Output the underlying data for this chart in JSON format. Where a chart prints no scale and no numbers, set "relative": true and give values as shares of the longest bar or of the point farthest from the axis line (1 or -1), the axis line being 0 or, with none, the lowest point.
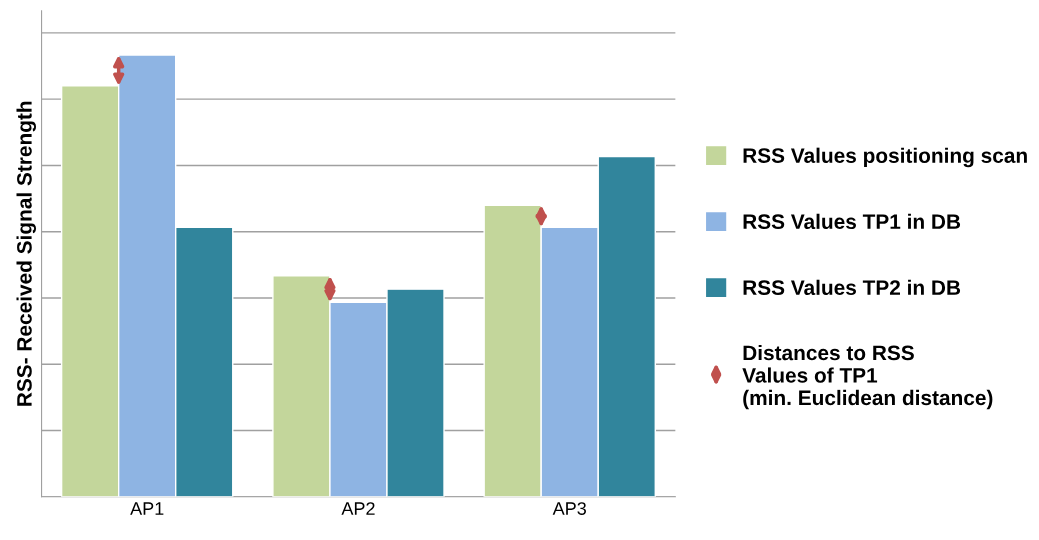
{
  "chart_data": {
    "type": "bar",
    "relative": true,
    "ylabel": "RSS- Received Signal Strength",
    "categories": [
      "AP1",
      "AP2",
      "AP3"
    ],
    "series": [
      {
        "name": "RSS Values positioning scan",
        "color": "#c3d69b",
        "values": [
          0.93,
          0.5,
          0.66
        ]
      },
      {
        "name": "RSS Values TP1 in DB",
        "color": "#8eb4e3",
        "values": [
          1,
          0.44,
          0.61
        ]
      },
      {
        "name": "RSS Values TP2 in DB",
        "color": "#31859c",
        "values": [
          0.61,
          0.47,
          0.77
        ]
      }
    ],
    "annotations": [
      "Distances to RSS\nValues of TP1\n(min. Euclidean distance)"
    ],
    "grid": "y",
    "legend": "right"
  }
}
